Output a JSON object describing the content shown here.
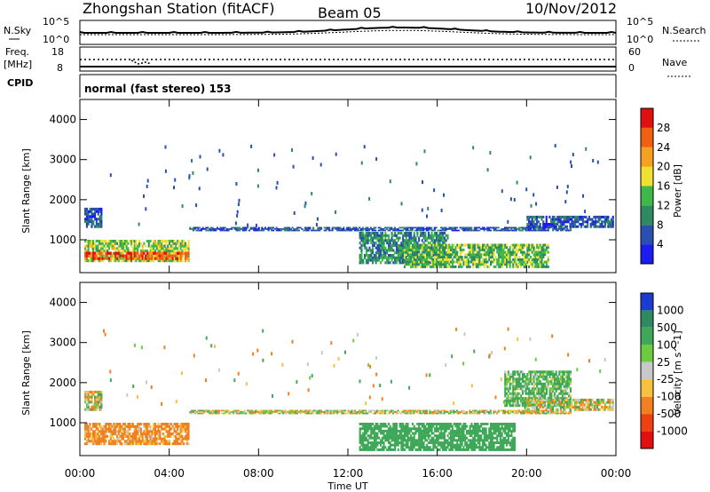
{
  "header": {
    "station": "Zhongshan Station (fitACF)",
    "beam": "Beam 05",
    "date": "10/Nov/2012",
    "mode": "normal (fast stereo) 153"
  },
  "strip_labels": {
    "nsky": "N.Sky",
    "nsky_top": "10^5",
    "nsky_bottom": "10^0",
    "nsearch": "N.Search",
    "nsearch_top": "10^5",
    "nsearch_bottom": "10^0",
    "freq_title": "Freq.",
    "freq_unit": "[MHz]",
    "freq_top": "18",
    "freq_bottom": "8",
    "nave": "Nave",
    "nave_top": "60",
    "nave_bottom": "0",
    "cpid": "CPID"
  },
  "axes": {
    "ylabel": "Slant Range [km]",
    "xlabel": "Time UT",
    "y_ticks": [
      "1000",
      "2000",
      "3000",
      "4000"
    ],
    "x_ticks": [
      "00:00",
      "04:00",
      "08:00",
      "12:00",
      "16:00",
      "20:00",
      "00:00"
    ]
  },
  "power_scale": {
    "label": "Power [dB]",
    "ticks": [
      "4",
      "8",
      "12",
      "16",
      "20",
      "24",
      "28"
    ],
    "colors": [
      "#1c1cf0",
      "#2a4fb0",
      "#2f8a60",
      "#3fb84a",
      "#f0e030",
      "#f8a020",
      "#f06010",
      "#e01010"
    ]
  },
  "velocity_scale": {
    "label": "Velocity [m s^-1]",
    "ticks": [
      "1000",
      "500",
      "100",
      "25",
      "-25",
      "-100",
      "-500",
      "-1000"
    ],
    "colors": [
      "#1c3cd0",
      "#2f8a60",
      "#3fa858",
      "#6ccc40",
      "#c8c8c8",
      "#f8c040",
      "#f08020",
      "#f04010",
      "#e01010"
    ]
  },
  "chart_data": [
    {
      "type": "heatmap",
      "name": "Power",
      "xlabel": "Time UT",
      "ylabel": "Slant Range [km]",
      "ylim": [
        180,
        4500
      ],
      "xlim": [
        0,
        24
      ],
      "colorbar": "Power [dB]",
      "colorbar_range": [
        0,
        30
      ],
      "regions": [
        {
          "t": [
            0.2,
            4.9
          ],
          "range": [
            450,
            1000
          ],
          "value": 16
        },
        {
          "t": [
            0.2,
            4.9
          ],
          "range": [
            500,
            700
          ],
          "value": 27
        },
        {
          "t": [
            0.2,
            1.0
          ],
          "range": [
            1300,
            1800
          ],
          "value": 6
        },
        {
          "t": [
            4.9,
            22.0
          ],
          "range": [
            1220,
            1320
          ],
          "value": 6
        },
        {
          "t": [
            12.5,
            16.5
          ],
          "range": [
            400,
            1200
          ],
          "value": 10
        },
        {
          "t": [
            14.5,
            21.0
          ],
          "range": [
            300,
            900
          ],
          "value": 14
        },
        {
          "t": [
            20.0,
            23.9
          ],
          "range": [
            1300,
            1600
          ],
          "value": 6
        }
      ]
    },
    {
      "type": "heatmap",
      "name": "Velocity",
      "xlabel": "Time UT",
      "ylabel": "Slant Range [km]",
      "ylim": [
        180,
        4500
      ],
      "xlim": [
        0,
        24
      ],
      "colorbar": "Velocity [m s^-1]",
      "colorbar_range": [
        -1000,
        1000
      ],
      "regions": [
        {
          "t": [
            0.2,
            4.9
          ],
          "range": [
            450,
            1000
          ],
          "value": -200
        },
        {
          "t": [
            0.2,
            1.0
          ],
          "range": [
            1300,
            1800
          ],
          "value": 0
        },
        {
          "t": [
            4.9,
            22.0
          ],
          "range": [
            1220,
            1320
          ],
          "value": 0
        },
        {
          "t": [
            12.5,
            19.5
          ],
          "range": [
            300,
            1000
          ],
          "value": 300
        },
        {
          "t": [
            19.0,
            22.0
          ],
          "range": [
            1400,
            2300
          ],
          "value": 150
        },
        {
          "t": [
            20.0,
            23.9
          ],
          "range": [
            1300,
            1600
          ],
          "value": 0
        }
      ]
    }
  ]
}
